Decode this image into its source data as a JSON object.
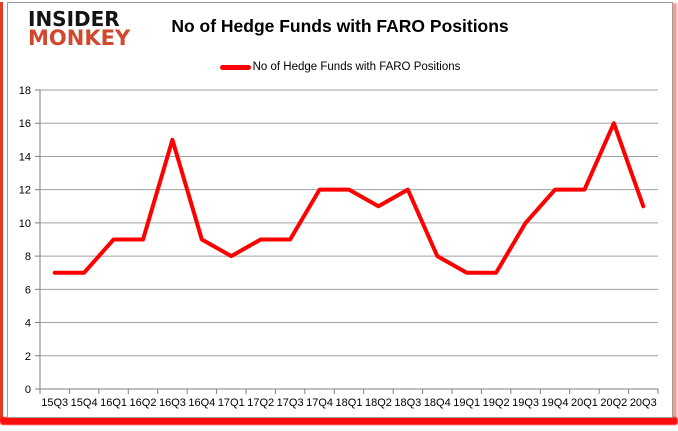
{
  "logo": {
    "line1": "INSIDER",
    "line2": "MONKEY"
  },
  "header": {
    "title": "No of Hedge Funds with FARO Positions"
  },
  "legend": {
    "label": "No of Hedge Funds with FARO Positions",
    "swatch_color": "#fe0000"
  },
  "chart_data": {
    "type": "line",
    "title": "No of Hedge Funds with FARO Positions",
    "categories": [
      "15Q3",
      "15Q4",
      "16Q1",
      "16Q2",
      "16Q3",
      "16Q4",
      "17Q1",
      "17Q2",
      "17Q3",
      "17Q4",
      "18Q1",
      "18Q2",
      "18Q3",
      "18Q4",
      "19Q1",
      "19Q2",
      "19Q3",
      "19Q4",
      "20Q1",
      "20Q2",
      "20Q3"
    ],
    "series": [
      {
        "name": "No of Hedge Funds with FARO Positions",
        "values": [
          7,
          7,
          9,
          9,
          15,
          9,
          8,
          9,
          9,
          12,
          12,
          11,
          12,
          8,
          7,
          7,
          10,
          12,
          12,
          16,
          11
        ],
        "color": "#fe0000"
      }
    ],
    "xlabel": "",
    "ylabel": "",
    "ylim": [
      0,
      18
    ],
    "yticks": [
      0,
      2,
      4,
      6,
      8,
      10,
      12,
      14,
      16,
      18
    ],
    "grid": true,
    "legend_position": "top"
  },
  "colors": {
    "line": "#fe0000",
    "grid": "#a0a0a0",
    "axis": "#7f7f7f",
    "text": "#000000",
    "logo_black": "#141414",
    "logo_red": "#d0492f",
    "frame_red": "#fe0d0d",
    "frame_border": "#9c9c9c"
  }
}
